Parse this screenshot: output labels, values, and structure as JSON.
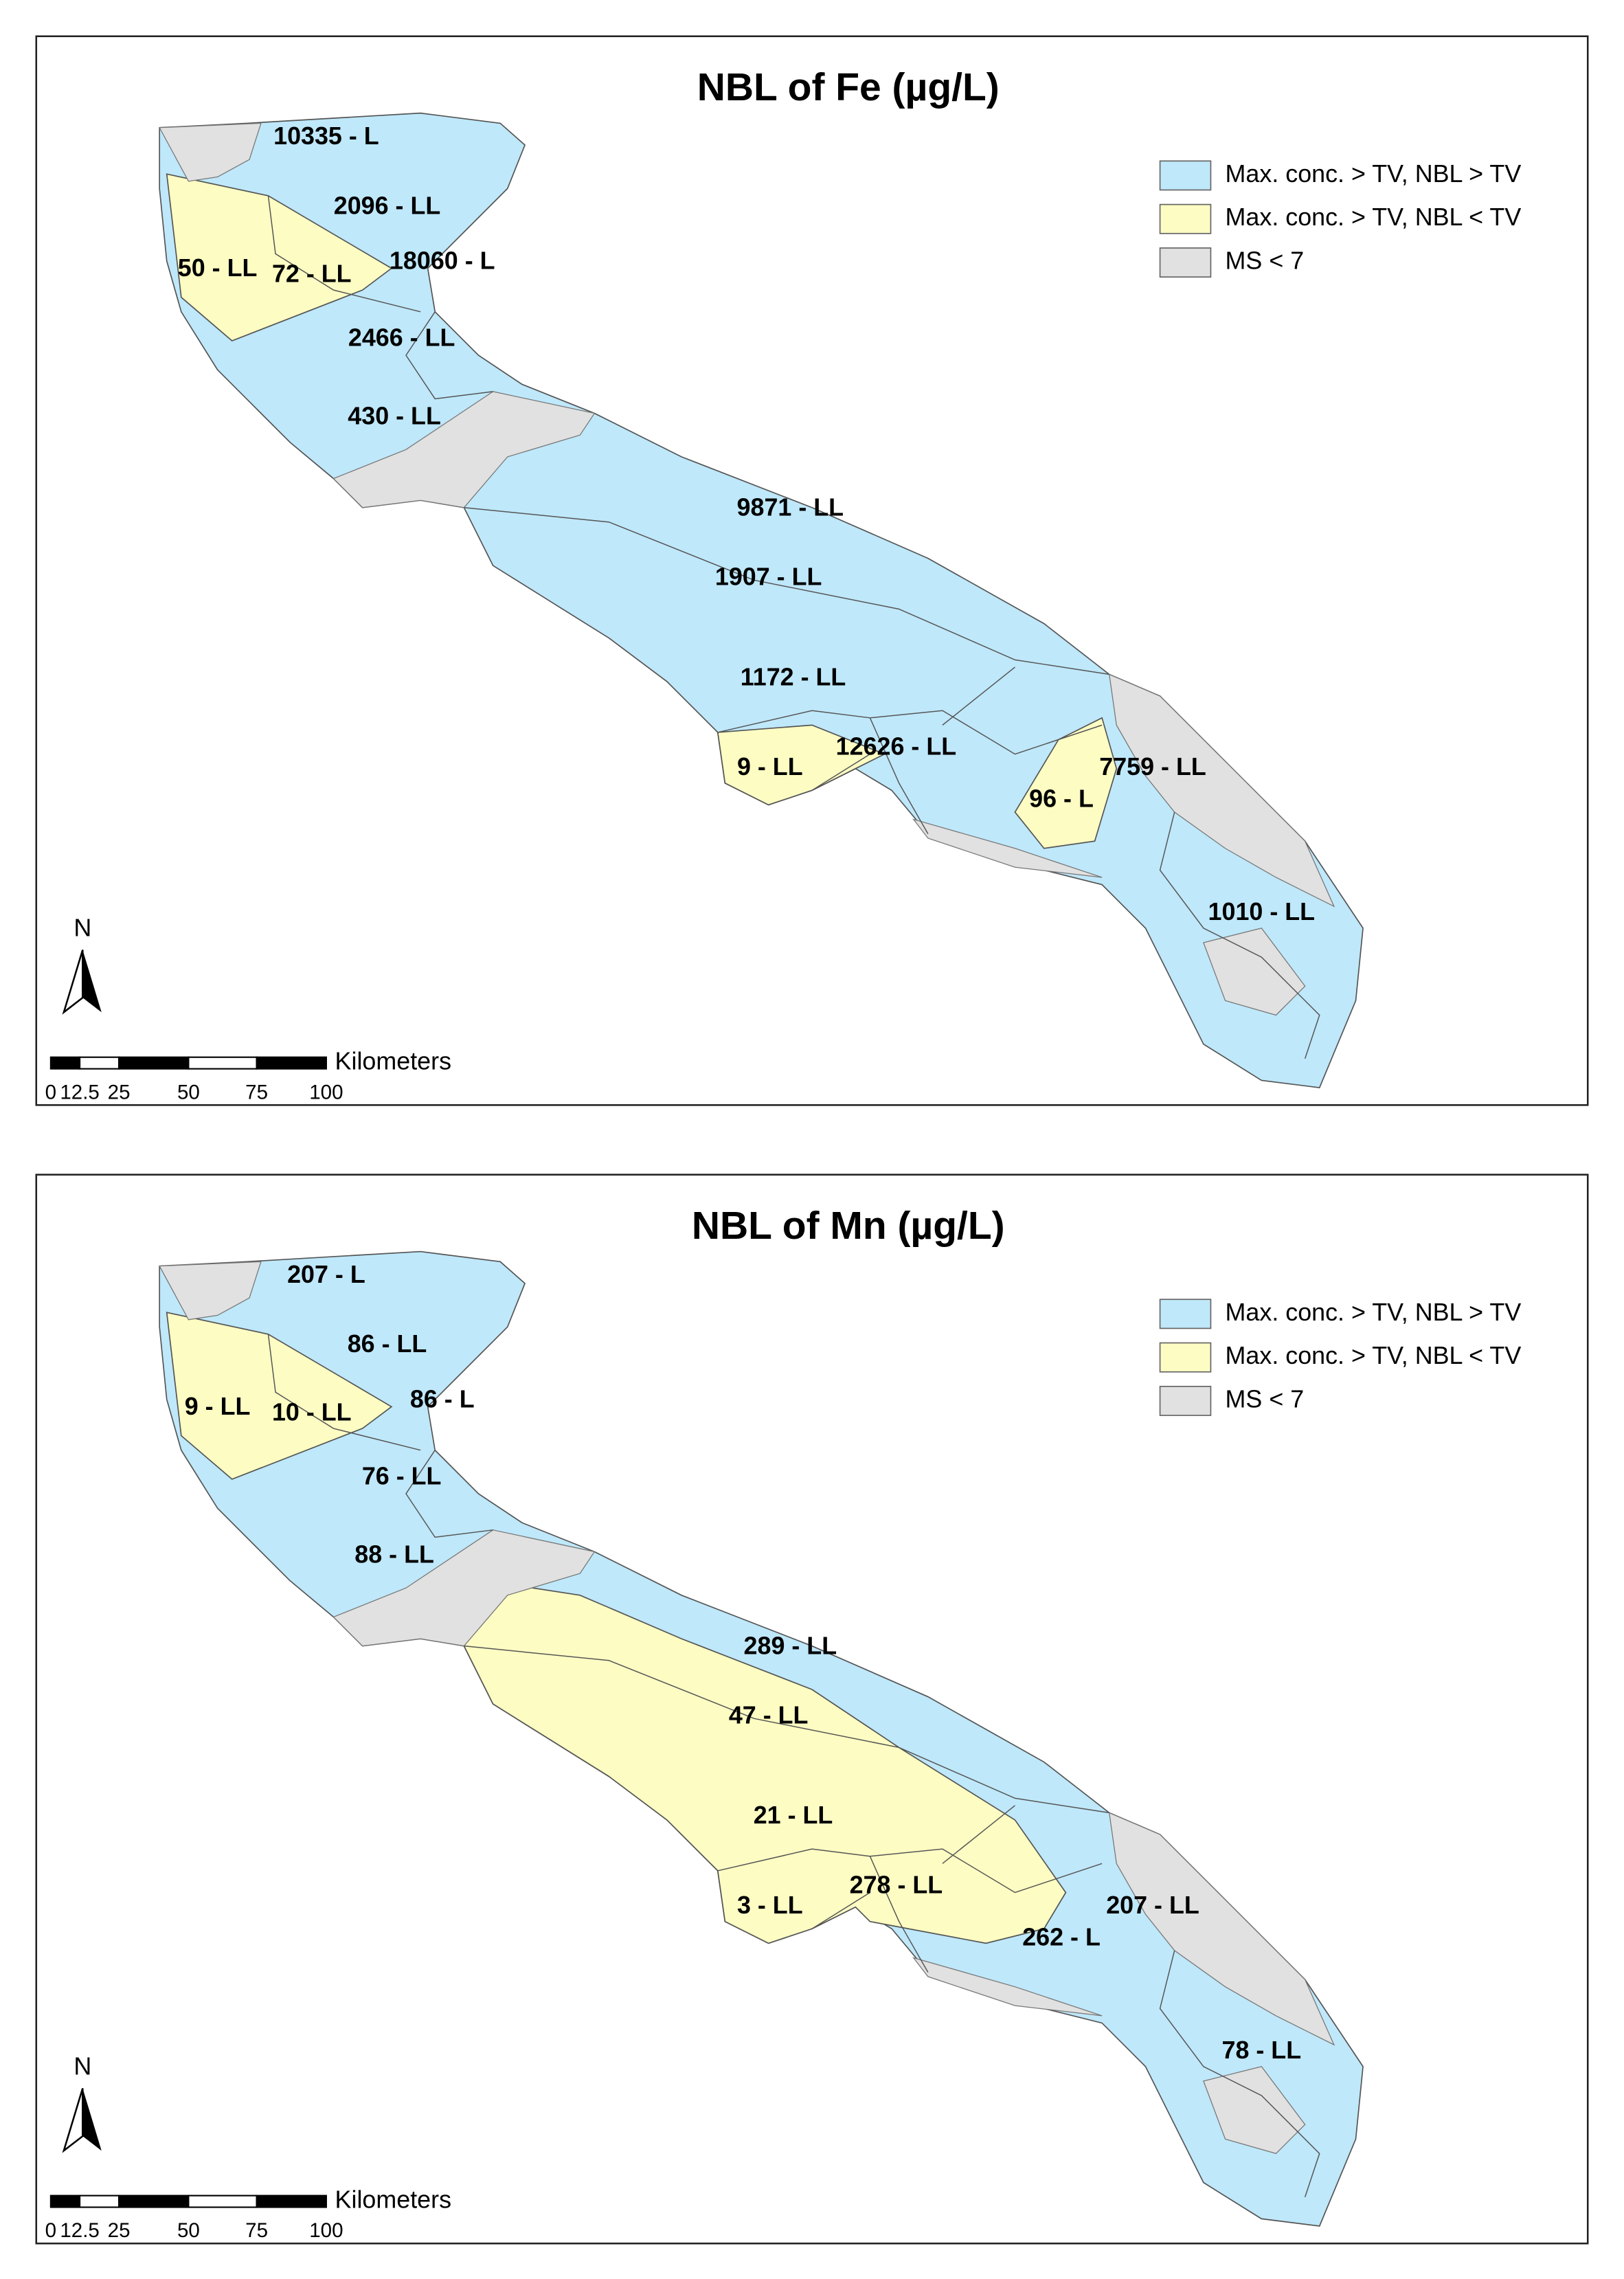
{
  "panels": [
    {
      "title": "NBL of Fe (µg/L)",
      "legend": [
        "Max. conc. > TV, NBL > TV",
        "Max. conc. > TV, NBL < TV",
        "MS < 7"
      ],
      "labels": [
        "10335 - L",
        "2096 - LL",
        "50 - LL",
        "72 - LL",
        "18060 - L",
        "2466 - LL",
        "430 - LL",
        "9871 - LL",
        "1907 - LL",
        "1172 - LL",
        "9 - LL",
        "12626 - LL",
        "96 - L",
        "7759 - LL",
        "1010 - LL"
      ],
      "north": "N",
      "scale_unit": "Kilometers",
      "scale_ticks": [
        "0",
        "12.5",
        "25",
        "50",
        "75",
        "100"
      ]
    },
    {
      "title": "NBL of Mn (µg/L)",
      "legend": [
        "Max. conc. > TV, NBL > TV",
        "Max. conc. > TV, NBL < TV",
        "MS < 7"
      ],
      "labels": [
        "207 - L",
        "86 - LL",
        "9 - LL",
        "10 - LL",
        "86 - L",
        "76 - LL",
        "88 - LL",
        "289 - LL",
        "47 - LL",
        "21 - LL",
        "3 - LL",
        "278 - LL",
        "262 - L",
        "207 - LL",
        "78 - LL"
      ],
      "north": "N",
      "scale_unit": "Kilometers",
      "scale_ticks": [
        "0",
        "12.5",
        "25",
        "50",
        "75",
        "100"
      ]
    }
  ]
}
